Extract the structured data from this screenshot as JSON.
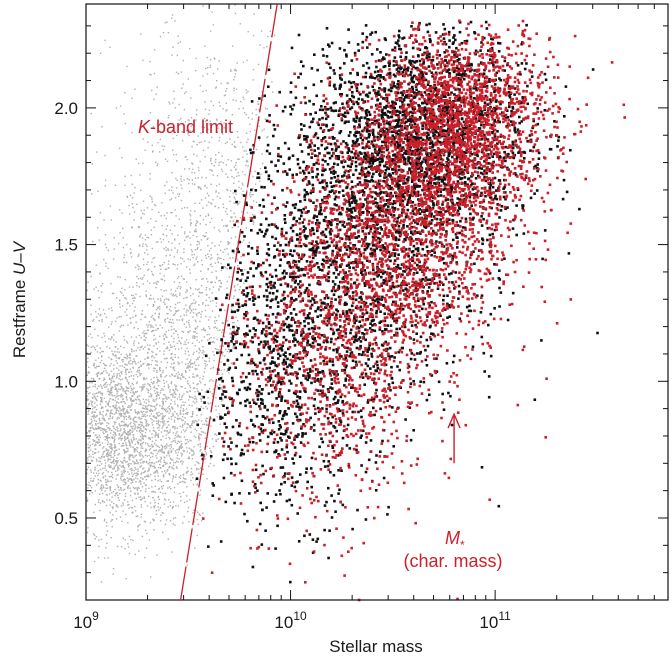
{
  "chart_data": {
    "type": "scatter",
    "title": "",
    "xlabel": "Stellar mass",
    "ylabel_prefix": "Restframe ",
    "ylabel_italic": "U",
    "ylabel_mid": "–",
    "ylabel_italic2": "V",
    "xscale": "log",
    "xlim": [
      1000000000,
      700000000000
    ],
    "ylim": [
      0.2,
      2.38
    ],
    "x_ticks": [
      {
        "value": 1000000000,
        "base": "10",
        "exp": "9"
      },
      {
        "value": 10000000000,
        "base": "10",
        "exp": "10"
      },
      {
        "value": 100000000000,
        "base": "10",
        "exp": "11"
      }
    ],
    "y_ticks": [
      {
        "value": 0.5,
        "label": "0.5"
      },
      {
        "value": 1.0,
        "label": "1.0"
      },
      {
        "value": 1.5,
        "label": "1.5"
      },
      {
        "value": 2.0,
        "label": "2.0"
      }
    ],
    "grid": false,
    "colors": {
      "grey": "#b0b0b0",
      "black": "#111111",
      "red": "#cc1f2a"
    },
    "series": [
      {
        "color": "grey",
        "clusters": [
          {
            "cx": 1500000000,
            "cy": 0.8,
            "sx": 0.22,
            "sy": 0.17,
            "n": 2600
          },
          {
            "cx": 2800000000,
            "cy": 1.15,
            "sx": 0.24,
            "sy": 0.28,
            "n": 1500
          },
          {
            "cx": 5000000000,
            "cy": 1.75,
            "sx": 0.28,
            "sy": 0.3,
            "n": 900
          }
        ]
      },
      {
        "color": "black",
        "clusters": [
          {
            "cx": 45000000000,
            "cy": 1.9,
            "sx": 0.25,
            "sy": 0.2,
            "n": 2200
          },
          {
            "cx": 20000000000,
            "cy": 1.45,
            "sx": 0.28,
            "sy": 0.3,
            "n": 1600
          },
          {
            "cx": 9000000000,
            "cy": 1.0,
            "sx": 0.22,
            "sy": 0.25,
            "n": 700
          }
        ]
      },
      {
        "color": "red",
        "clusters": [
          {
            "cx": 70000000000,
            "cy": 1.95,
            "sx": 0.22,
            "sy": 0.18,
            "n": 1800
          },
          {
            "cx": 35000000000,
            "cy": 1.55,
            "sx": 0.25,
            "sy": 0.25,
            "n": 1700
          },
          {
            "cx": 15000000000,
            "cy": 1.05,
            "sx": 0.25,
            "sy": 0.28,
            "n": 900
          }
        ]
      }
    ],
    "kband_limit": {
      "label_italic": "K",
      "label_rest": "-band limit",
      "points": [
        [
          2900000000,
          0.2
        ],
        [
          8600000000,
          2.38
        ]
      ]
    },
    "char_mass": {
      "label_italic": "M",
      "label_sub": "*",
      "label_line2": "(char. mass)",
      "x": 63000000000,
      "y_from": 0.7,
      "y_to": 0.88
    }
  }
}
